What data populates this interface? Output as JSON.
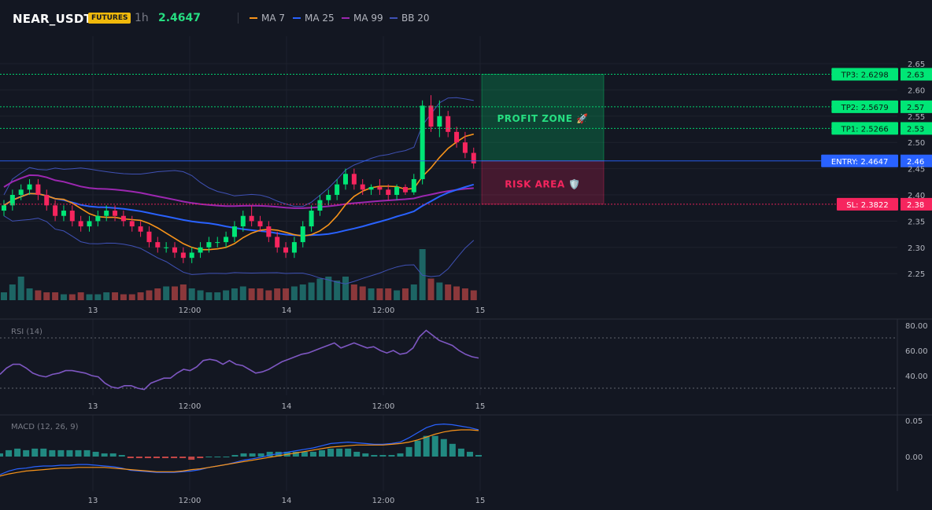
{
  "header": {
    "symbol": "NEAR_USDT",
    "badge": "FUTURES",
    "timeframe": "1h",
    "last_price": "2.4647",
    "legend": [
      {
        "label": "MA 7",
        "color": "#f7931a"
      },
      {
        "label": "MA 25",
        "color": "#2962ff"
      },
      {
        "label": "MA 99",
        "color": "#9c27b0"
      },
      {
        "label": "BB 20",
        "color": "#3f51b5"
      }
    ]
  },
  "main_axis_ticks": [
    "2.65",
    "2.60",
    "2.55",
    "2.50",
    "2.45",
    "2.40",
    "2.35",
    "2.30",
    "2.25"
  ],
  "time_ticks": [
    "13",
    "12:00",
    "14",
    "12:00",
    "15"
  ],
  "levels": {
    "tp3": {
      "label": "TP3: 2.6298",
      "axis": "2.63",
      "color": "#00e676"
    },
    "tp2": {
      "label": "TP2: 2.5679",
      "axis": "2.57",
      "color": "#00e676"
    },
    "tp1": {
      "label": "TP1: 2.5266",
      "axis": "2.53",
      "color": "#00e676"
    },
    "entry": {
      "label": "ENTRY: 2.4647",
      "axis": "2.46",
      "color": "#2962ff"
    },
    "sl": {
      "label": "SL: 2.3822",
      "axis": "2.38",
      "color": "#f6255e"
    }
  },
  "zones": {
    "profit": "PROFIT ZONE 🚀",
    "risk": "RISK AREA 🛡️"
  },
  "rsi": {
    "label": "RSI (14)",
    "ticks": [
      "80.00",
      "60.00",
      "40.00"
    ],
    "values": [
      41,
      46,
      49,
      49,
      46,
      42,
      40,
      39,
      41,
      42,
      44,
      44,
      43,
      42,
      40,
      39,
      34,
      31,
      30,
      32,
      32,
      30,
      29,
      34,
      36,
      38,
      38,
      42,
      45,
      44,
      47,
      52,
      53,
      52,
      49,
      52,
      49,
      48,
      45,
      42,
      43,
      45,
      48,
      51,
      53,
      55,
      57,
      58,
      60,
      62,
      64,
      66,
      62,
      64,
      66,
      64,
      62,
      63,
      60,
      58,
      60,
      57,
      58,
      62,
      71,
      76,
      72,
      68,
      66,
      64,
      60,
      57,
      55,
      54
    ]
  },
  "macd": {
    "label": "MACD (12, 26, 9)",
    "ticks": [
      "0.05",
      "0.00"
    ],
    "macd_line": [
      -0.025,
      -0.02,
      -0.017,
      -0.016,
      -0.014,
      -0.013,
      -0.013,
      -0.012,
      -0.012,
      -0.011,
      -0.011,
      -0.012,
      -0.013,
      -0.014,
      -0.016,
      -0.019,
      -0.02,
      -0.021,
      -0.022,
      -0.022,
      -0.022,
      -0.021,
      -0.02,
      -0.018,
      -0.015,
      -0.013,
      -0.011,
      -0.008,
      -0.005,
      -0.003,
      -0.001,
      0.002,
      0.004,
      0.006,
      0.008,
      0.01,
      0.012,
      0.015,
      0.018,
      0.019,
      0.02,
      0.019,
      0.018,
      0.017,
      0.017,
      0.018,
      0.02,
      0.026,
      0.033,
      0.04,
      0.044,
      0.045,
      0.044,
      0.042,
      0.04,
      0.037
    ],
    "signal_line": [
      -0.027,
      -0.024,
      -0.022,
      -0.02,
      -0.019,
      -0.018,
      -0.017,
      -0.016,
      -0.016,
      -0.015,
      -0.015,
      -0.015,
      -0.015,
      -0.016,
      -0.017,
      -0.018,
      -0.019,
      -0.02,
      -0.021,
      -0.021,
      -0.021,
      -0.02,
      -0.018,
      -0.017,
      -0.015,
      -0.013,
      -0.011,
      -0.009,
      -0.007,
      -0.005,
      -0.003,
      -0.001,
      0.001,
      0.003,
      0.005,
      0.007,
      0.009,
      0.011,
      0.013,
      0.014,
      0.015,
      0.016,
      0.016,
      0.016,
      0.016,
      0.017,
      0.018,
      0.02,
      0.023,
      0.027,
      0.031,
      0.034,
      0.036,
      0.037,
      0.037,
      0.036
    ]
  },
  "colors": {
    "bull": "#26a69a",
    "bear": "#ef5350",
    "bull_bright": "#00e676",
    "bear_bright": "#f6255e",
    "grid": "#1e222d",
    "axis_text": "#b2b5be"
  },
  "candles": [
    [
      2.37,
      2.39,
      2.36,
      2.38
    ],
    [
      2.38,
      2.41,
      2.37,
      2.4
    ],
    [
      2.4,
      2.42,
      2.39,
      2.41
    ],
    [
      2.41,
      2.43,
      2.4,
      2.42
    ],
    [
      2.42,
      2.43,
      2.39,
      2.4
    ],
    [
      2.4,
      2.41,
      2.37,
      2.38
    ],
    [
      2.38,
      2.39,
      2.35,
      2.36
    ],
    [
      2.36,
      2.38,
      2.35,
      2.37
    ],
    [
      2.37,
      2.38,
      2.34,
      2.35
    ],
    [
      2.35,
      2.36,
      2.33,
      2.34
    ],
    [
      2.34,
      2.36,
      2.33,
      2.35
    ],
    [
      2.35,
      2.37,
      2.34,
      2.36
    ],
    [
      2.36,
      2.38,
      2.35,
      2.37
    ],
    [
      2.37,
      2.38,
      2.35,
      2.36
    ],
    [
      2.36,
      2.37,
      2.34,
      2.35
    ],
    [
      2.35,
      2.36,
      2.33,
      2.34
    ],
    [
      2.34,
      2.35,
      2.32,
      2.33
    ],
    [
      2.33,
      2.34,
      2.3,
      2.31
    ],
    [
      2.31,
      2.32,
      2.29,
      2.3
    ],
    [
      2.3,
      2.31,
      2.29,
      2.3
    ],
    [
      2.3,
      2.31,
      2.28,
      2.29
    ],
    [
      2.29,
      2.3,
      2.27,
      2.28
    ],
    [
      2.28,
      2.3,
      2.27,
      2.29
    ],
    [
      2.29,
      2.31,
      2.28,
      2.3
    ],
    [
      2.3,
      2.32,
      2.29,
      2.31
    ],
    [
      2.31,
      2.32,
      2.3,
      2.31
    ],
    [
      2.31,
      2.33,
      2.3,
      2.32
    ],
    [
      2.32,
      2.35,
      2.31,
      2.34
    ],
    [
      2.34,
      2.37,
      2.33,
      2.36
    ],
    [
      2.36,
      2.38,
      2.34,
      2.35
    ],
    [
      2.35,
      2.36,
      2.33,
      2.34
    ],
    [
      2.34,
      2.35,
      2.31,
      2.32
    ],
    [
      2.32,
      2.33,
      2.29,
      2.3
    ],
    [
      2.3,
      2.31,
      2.28,
      2.29
    ],
    [
      2.29,
      2.32,
      2.28,
      2.31
    ],
    [
      2.31,
      2.35,
      2.3,
      2.34
    ],
    [
      2.34,
      2.38,
      2.33,
      2.37
    ],
    [
      2.37,
      2.4,
      2.36,
      2.39
    ],
    [
      2.39,
      2.41,
      2.38,
      2.4
    ],
    [
      2.4,
      2.43,
      2.39,
      2.42
    ],
    [
      2.42,
      2.45,
      2.41,
      2.44
    ],
    [
      2.44,
      2.45,
      2.41,
      2.42
    ],
    [
      2.42,
      2.43,
      2.4,
      2.41
    ],
    [
      2.41,
      2.42,
      2.4,
      2.415
    ],
    [
      2.415,
      2.43,
      2.4,
      2.41
    ],
    [
      2.41,
      2.42,
      2.39,
      2.4
    ],
    [
      2.4,
      2.42,
      2.39,
      2.415
    ],
    [
      2.415,
      2.42,
      2.4,
      2.405
    ],
    [
      2.405,
      2.44,
      2.4,
      2.43
    ],
    [
      2.43,
      2.58,
      2.42,
      2.57
    ],
    [
      2.57,
      2.59,
      2.52,
      2.53
    ],
    [
      2.53,
      2.58,
      2.51,
      2.55
    ],
    [
      2.55,
      2.56,
      2.51,
      2.52
    ],
    [
      2.52,
      2.53,
      2.49,
      2.5
    ],
    [
      2.5,
      2.52,
      2.47,
      2.48
    ],
    [
      2.48,
      2.49,
      2.45,
      2.46
    ]
  ],
  "volumes": [
    0.2,
    0.4,
    0.6,
    0.3,
    0.25,
    0.2,
    0.2,
    0.15,
    0.15,
    0.2,
    0.15,
    0.15,
    0.2,
    0.2,
    0.15,
    0.15,
    0.2,
    0.25,
    0.3,
    0.35,
    0.35,
    0.4,
    0.3,
    0.25,
    0.2,
    0.2,
    0.25,
    0.3,
    0.35,
    0.3,
    0.3,
    0.25,
    0.3,
    0.3,
    0.35,
    0.4,
    0.45,
    0.55,
    0.6,
    0.5,
    0.6,
    0.4,
    0.35,
    0.3,
    0.3,
    0.3,
    0.25,
    0.3,
    0.4,
    1.3,
    0.55,
    0.45,
    0.4,
    0.35,
    0.3,
    0.25
  ],
  "rsi_axis_ticks_placeholder": ""
}
